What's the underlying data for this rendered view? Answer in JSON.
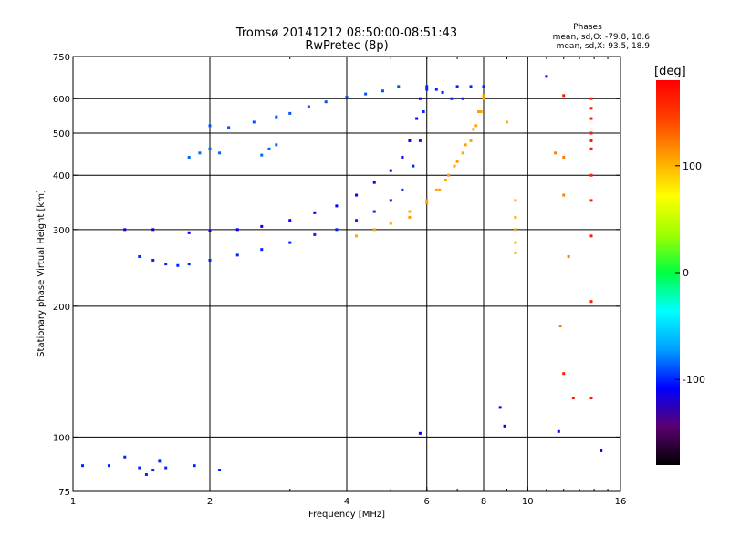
{
  "chart_data": {
    "type": "scatter",
    "title": "Tromsø 20141212 08:50:00-08:51:43",
    "subtitle": "RwPretec (8p)",
    "xlabel": "Frequency [MHz]",
    "ylabel": "Stationary phase Virtual Height [km]",
    "x_scale": "log",
    "y_scale": "log",
    "xlim": [
      1,
      16
    ],
    "ylim": [
      75,
      750
    ],
    "x_ticks": [
      1,
      2,
      4,
      6,
      8,
      10,
      16
    ],
    "x_tick_labels": [
      "1",
      "2",
      "4",
      "6",
      "8",
      "10",
      "16"
    ],
    "y_ticks": [
      75,
      100,
      200,
      300,
      400,
      500,
      600,
      750
    ],
    "y_tick_labels": [
      "75",
      "100",
      "200",
      "300",
      "400",
      "500",
      "600",
      "750"
    ],
    "x_gridlines": [
      2,
      4,
      6,
      8,
      10
    ],
    "y_gridlines": [
      100,
      200,
      300,
      400,
      500,
      600
    ],
    "grid": true,
    "phase_stats": {
      "title": "Phases",
      "o_line": "mean, sd,O: -79.8, 18.6",
      "x_line": "mean, sd,X: 93.5, 18.9"
    },
    "colorbar": {
      "title": "[deg]",
      "range": [
        -180,
        180
      ],
      "tick_values": [
        100,
        0,
        -100
      ],
      "tick_labels": [
        "100",
        "0",
        "-100"
      ],
      "colors": [
        "#000000",
        "#5a0070",
        "#0000ff",
        "#00a0ff",
        "#00ffff",
        "#00ff40",
        "#a0ff00",
        "#ffff00",
        "#ffa000",
        "#ff4000",
        "#ff0000"
      ]
    },
    "series": [
      {
        "phase": -100,
        "points": [
          [
            1.4,
            260
          ],
          [
            1.5,
            255
          ],
          [
            1.6,
            250
          ],
          [
            1.7,
            248
          ],
          [
            1.8,
            250
          ],
          [
            2.0,
            255
          ],
          [
            2.3,
            262
          ],
          [
            2.6,
            270
          ],
          [
            3.0,
            280
          ],
          [
            3.4,
            292
          ],
          [
            3.8,
            300
          ],
          [
            4.2,
            315
          ],
          [
            4.6,
            330
          ],
          [
            5.0,
            350
          ],
          [
            5.3,
            370
          ],
          [
            5.6,
            420
          ],
          [
            5.8,
            480
          ],
          [
            5.9,
            560
          ],
          [
            6.0,
            630
          ]
        ]
      },
      {
        "phase": -110,
        "points": [
          [
            1.3,
            300
          ],
          [
            1.5,
            300
          ],
          [
            1.8,
            295
          ],
          [
            2.0,
            298
          ],
          [
            2.3,
            300
          ],
          [
            2.6,
            305
          ],
          [
            3.0,
            315
          ],
          [
            3.4,
            328
          ],
          [
            3.8,
            340
          ],
          [
            4.2,
            360
          ],
          [
            4.6,
            385
          ],
          [
            5.0,
            410
          ],
          [
            5.3,
            440
          ],
          [
            5.5,
            480
          ],
          [
            5.7,
            540
          ],
          [
            5.8,
            600
          ]
        ]
      },
      {
        "phase": -90,
        "points": [
          [
            2.0,
            520
          ],
          [
            2.2,
            515
          ],
          [
            2.5,
            530
          ],
          [
            2.8,
            545
          ],
          [
            3.0,
            555
          ],
          [
            3.3,
            575
          ],
          [
            3.6,
            590
          ],
          [
            4.0,
            605
          ],
          [
            4.4,
            615
          ],
          [
            4.8,
            625
          ],
          [
            5.2,
            640
          ]
        ]
      },
      {
        "phase": -85,
        "points": [
          [
            1.8,
            440
          ],
          [
            1.9,
            450
          ],
          [
            2.0,
            460
          ],
          [
            2.1,
            450
          ],
          [
            2.6,
            445
          ],
          [
            2.7,
            460
          ],
          [
            2.8,
            470
          ]
        ]
      },
      {
        "phase": -100,
        "points": [
          [
            6.0,
            640
          ],
          [
            6.3,
            630
          ],
          [
            6.5,
            620
          ],
          [
            6.8,
            600
          ],
          [
            7.0,
            640
          ],
          [
            7.2,
            600
          ],
          [
            7.5,
            640
          ],
          [
            8.0,
            640
          ]
        ]
      },
      {
        "phase": 105,
        "points": [
          [
            4.2,
            290
          ],
          [
            4.6,
            300
          ],
          [
            5.0,
            310
          ],
          [
            5.5,
            330
          ],
          [
            6.0,
            350
          ],
          [
            6.3,
            370
          ],
          [
            6.6,
            390
          ],
          [
            6.9,
            420
          ],
          [
            7.2,
            450
          ],
          [
            7.5,
            480
          ],
          [
            7.7,
            520
          ],
          [
            7.9,
            560
          ],
          [
            8.0,
            600
          ]
        ]
      },
      {
        "phase": 110,
        "points": [
          [
            5.5,
            320
          ],
          [
            6.0,
            345
          ],
          [
            6.4,
            370
          ],
          [
            6.7,
            400
          ],
          [
            7.0,
            430
          ],
          [
            7.3,
            470
          ],
          [
            7.6,
            510
          ],
          [
            7.8,
            560
          ],
          [
            8.0,
            610
          ]
        ]
      },
      {
        "phase": 100,
        "points": [
          [
            9.0,
            530
          ],
          [
            9.4,
            350
          ],
          [
            9.4,
            320
          ],
          [
            9.4,
            300
          ],
          [
            9.4,
            280
          ],
          [
            9.4,
            265
          ]
        ]
      },
      {
        "phase": 165,
        "points": [
          [
            12.0,
            610
          ],
          [
            13.8,
            600
          ],
          [
            13.8,
            570
          ],
          [
            13.8,
            540
          ],
          [
            13.8,
            500
          ],
          [
            13.8,
            480
          ],
          [
            13.8,
            460
          ],
          [
            13.8,
            400
          ],
          [
            13.8,
            350
          ],
          [
            13.8,
            290
          ],
          [
            13.8,
            205
          ],
          [
            12.0,
            140
          ],
          [
            12.6,
            123
          ],
          [
            13.8,
            123
          ]
        ]
      },
      {
        "phase": 120,
        "points": [
          [
            11.5,
            450
          ],
          [
            12.0,
            440
          ],
          [
            12.0,
            360
          ],
          [
            12.3,
            260
          ],
          [
            11.8,
            180
          ]
        ]
      },
      {
        "phase": -100,
        "points": [
          [
            1.05,
            86
          ],
          [
            1.2,
            86
          ],
          [
            1.3,
            90
          ],
          [
            1.4,
            85
          ],
          [
            1.45,
            82
          ],
          [
            1.5,
            84
          ],
          [
            1.55,
            88
          ],
          [
            1.6,
            85
          ],
          [
            1.85,
            86
          ],
          [
            2.1,
            84
          ]
        ]
      },
      {
        "phase": -110,
        "points": [
          [
            5.8,
            102
          ],
          [
            8.7,
            117
          ],
          [
            8.9,
            106
          ],
          [
            11.0,
            675
          ],
          [
            11.7,
            103
          ],
          [
            14.5,
            93
          ]
        ]
      }
    ]
  }
}
